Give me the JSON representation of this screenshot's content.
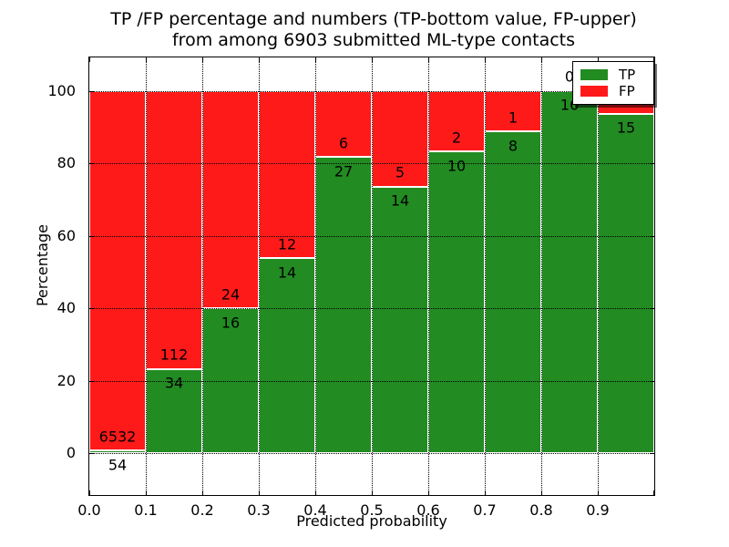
{
  "chart_data": {
    "type": "bar",
    "subtype": "stacked-percentage-histogram",
    "title_line1": "TP /FP percentage and numbers (TP-bottom value, FP-upper)",
    "title_line2": "from among 6903 submitted ML-type contacts",
    "xlabel": "Predicted probability",
    "ylabel": "Percentage",
    "x_tick_labels": [
      "0.0",
      "0.1",
      "0.2",
      "0.3",
      "0.4",
      "0.5",
      "0.6",
      "0.7",
      "0.8",
      "0.9"
    ],
    "y_ticks": [
      0,
      20,
      40,
      60,
      80,
      100
    ],
    "xlim": [
      0.0,
      1.0
    ],
    "ylim_display": [
      -11.5,
      109.3
    ],
    "grid": "dotted, drawn above bars",
    "legend_position": "upper right",
    "legend": [
      {
        "label": "TP",
        "color": "#228B22"
      },
      {
        "label": "FP",
        "color": "#FF1A1A"
      }
    ],
    "colors": {
      "tp": "#228B22",
      "fp": "#FF1A1A",
      "bar_edge": "#ffffff"
    },
    "bins": [
      {
        "x_start": 0.0,
        "x_end": 0.1,
        "tp": 54,
        "fp": 6532
      },
      {
        "x_start": 0.1,
        "x_end": 0.2,
        "tp": 34,
        "fp": 112
      },
      {
        "x_start": 0.2,
        "x_end": 0.3,
        "tp": 16,
        "fp": 24
      },
      {
        "x_start": 0.3,
        "x_end": 0.4,
        "tp": 14,
        "fp": 12
      },
      {
        "x_start": 0.4,
        "x_end": 0.5,
        "tp": 27,
        "fp": 6
      },
      {
        "x_start": 0.5,
        "x_end": 0.6,
        "tp": 14,
        "fp": 5
      },
      {
        "x_start": 0.6,
        "x_end": 0.7,
        "tp": 10,
        "fp": 2
      },
      {
        "x_start": 0.7,
        "x_end": 0.8,
        "tp": 8,
        "fp": 1
      },
      {
        "x_start": 0.8,
        "x_end": 0.9,
        "tp": 16,
        "fp": 0
      },
      {
        "x_start": 0.9,
        "x_end": 1.0,
        "tp": 15,
        "fp": 1
      }
    ]
  }
}
